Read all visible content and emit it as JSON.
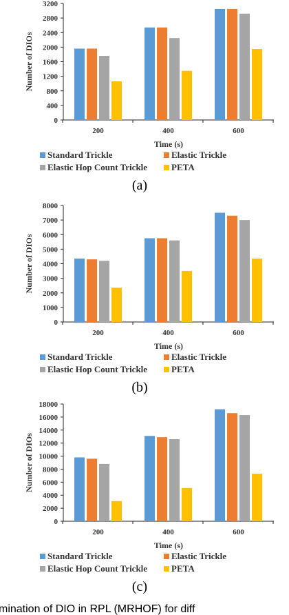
{
  "colors": {
    "Standard Trickle": "#5b9bd5",
    "Elastic Trickle": "#ed7d31",
    "Elastic Hop Count Trickle": "#a5a5a5",
    "PETA": "#ffc000"
  },
  "chart_data": [
    {
      "type": "bar",
      "panel_label": "(a)",
      "categories": [
        "200",
        "400",
        "600"
      ],
      "xlabel": "Time (s)",
      "ylabel": "Number of DIOs",
      "ylim": [
        0,
        3200
      ],
      "yticks": [
        0,
        400,
        800,
        1200,
        1600,
        2000,
        2400,
        2800,
        3200
      ],
      "grid": false,
      "legend_position": "bottom",
      "series": [
        {
          "name": "Standard Trickle",
          "values": [
            1960,
            2540,
            3050
          ]
        },
        {
          "name": "Elastic Trickle",
          "values": [
            1960,
            2540,
            3050
          ]
        },
        {
          "name": "Elastic Hop Count Trickle",
          "values": [
            1760,
            2250,
            2920
          ]
        },
        {
          "name": "PETA",
          "values": [
            1060,
            1350,
            1950
          ]
        }
      ]
    },
    {
      "type": "bar",
      "panel_label": "(b)",
      "categories": [
        "200",
        "400",
        "600"
      ],
      "xlabel": "Time (s)",
      "ylabel": "Number of DIOs",
      "ylim": [
        0,
        8000
      ],
      "yticks": [
        0,
        1000,
        2000,
        3000,
        4000,
        5000,
        6000,
        7000,
        8000
      ],
      "grid": false,
      "legend_position": "bottom",
      "series": [
        {
          "name": "Standard Trickle",
          "values": [
            4350,
            5750,
            7500
          ]
        },
        {
          "name": "Elastic Trickle",
          "values": [
            4300,
            5750,
            7300
          ]
        },
        {
          "name": "Elastic Hop Count Trickle",
          "values": [
            4200,
            5600,
            7000
          ]
        },
        {
          "name": "PETA",
          "values": [
            2350,
            3500,
            4350
          ]
        }
      ]
    },
    {
      "type": "bar",
      "panel_label": "(c)",
      "categories": [
        "200",
        "400",
        "600"
      ],
      "xlabel": "Time (s)",
      "ylabel": "Number of DIOs",
      "ylim": [
        0,
        18000
      ],
      "yticks": [
        0,
        2000,
        4000,
        6000,
        8000,
        10000,
        12000,
        14000,
        16000,
        18000
      ],
      "grid": false,
      "legend_position": "bottom",
      "series": [
        {
          "name": "Standard Trickle",
          "values": [
            9800,
            13100,
            17200
          ]
        },
        {
          "name": "Elastic Trickle",
          "values": [
            9600,
            12900,
            16600
          ]
        },
        {
          "name": "Elastic Hop Count Trickle",
          "values": [
            8800,
            12600,
            16300
          ]
        },
        {
          "name": "PETA",
          "values": [
            3100,
            5100,
            7300
          ]
        }
      ]
    }
  ],
  "caption_fragment": "mination of DIO in RPL (MRHOF) for diff"
}
